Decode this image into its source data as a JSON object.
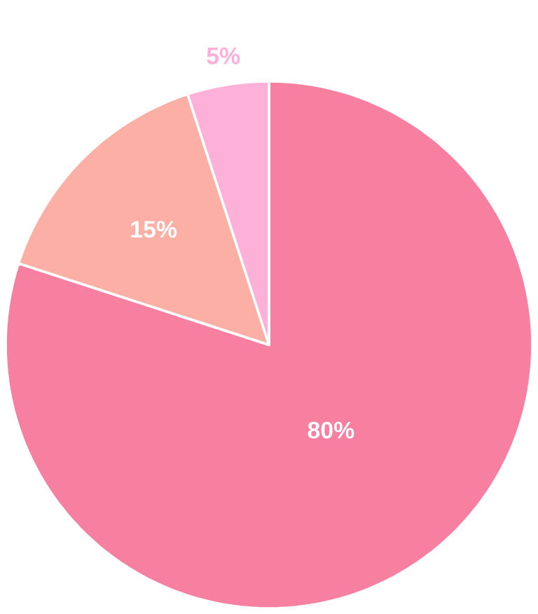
{
  "chart_data": {
    "type": "pie",
    "categories": [
      null,
      null,
      null
    ],
    "values": [
      80,
      15,
      5
    ],
    "colors": [
      "#f77fa0",
      "#fbafa5",
      "#fdb0d8"
    ],
    "value_labels": [
      "80%",
      "15%",
      "5%"
    ]
  }
}
